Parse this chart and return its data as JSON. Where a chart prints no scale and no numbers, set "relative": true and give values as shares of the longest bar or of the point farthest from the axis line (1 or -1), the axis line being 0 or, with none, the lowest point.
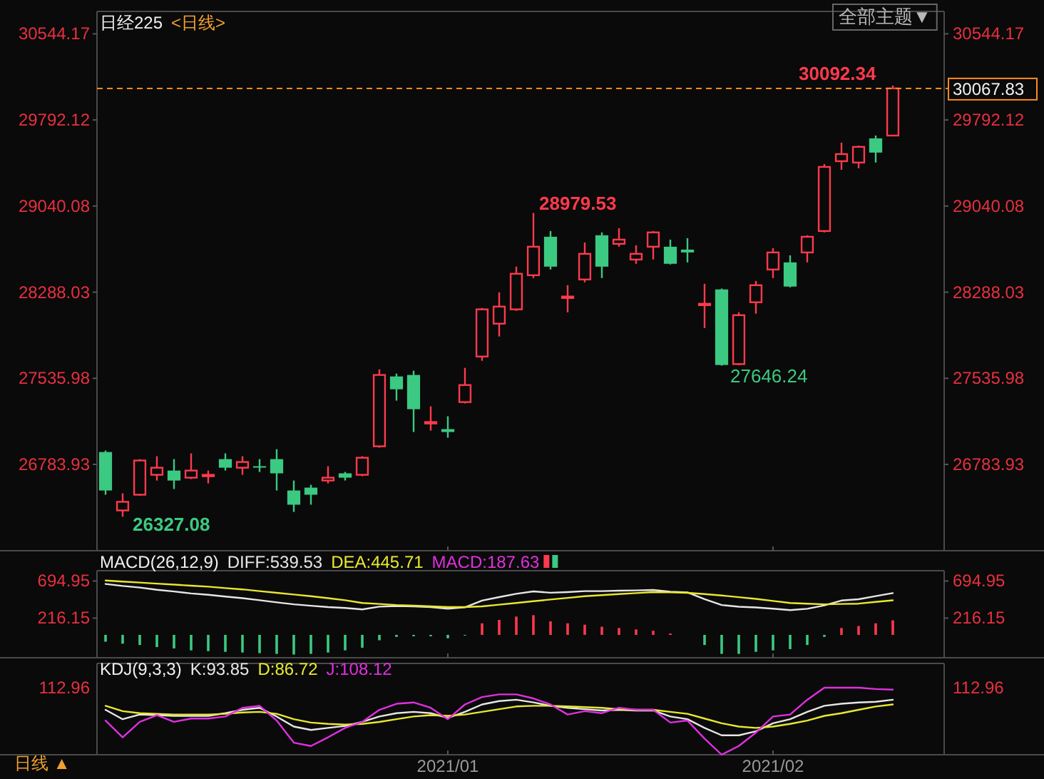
{
  "chart_data": [
    {
      "type": "candlestick",
      "title": "日经225",
      "subtitle": "<日线>",
      "categories": [
        null,
        null,
        null,
        null,
        null,
        null,
        null,
        null,
        null,
        null,
        null,
        null,
        null,
        null,
        null,
        null,
        null,
        null,
        null,
        null,
        "2021/01",
        null,
        null,
        null,
        null,
        null,
        null,
        null,
        null,
        null,
        null,
        null,
        null,
        null,
        null,
        null,
        null,
        null,
        null,
        "2021/02",
        null,
        null,
        null,
        null,
        null,
        null,
        null
      ],
      "ohlc": [
        [
          26892,
          26905,
          26519,
          26556
        ],
        [
          26382,
          26531,
          26327.08,
          26457
        ],
        [
          26519,
          26830,
          26510,
          26818
        ],
        [
          26693,
          26855,
          26643,
          26755
        ],
        [
          26730,
          26830,
          26569,
          26643
        ],
        [
          26668,
          26880,
          26656,
          26730
        ],
        [
          26681,
          26730,
          26618,
          26693
        ],
        [
          26830,
          26880,
          26730,
          26755
        ],
        [
          26755,
          26855,
          26693,
          26805
        ],
        [
          26768,
          26830,
          26718,
          26762
        ],
        [
          26830,
          26917,
          26556,
          26706
        ],
        [
          26556,
          26643,
          26369,
          26432
        ],
        [
          26581,
          26606,
          26432,
          26519
        ],
        [
          26643,
          26768,
          26618,
          26668
        ],
        [
          26706,
          26718,
          26643,
          26668
        ],
        [
          26693,
          26855,
          26681,
          26842
        ],
        [
          26942,
          27614,
          26930,
          27565
        ],
        [
          27552,
          27577,
          27341,
          27440
        ],
        [
          27565,
          27602,
          27067,
          27266
        ],
        [
          27141,
          27291,
          27079,
          27154
        ],
        [
          27092,
          27204,
          27017,
          27067
        ],
        [
          27328,
          27627,
          27316,
          27477
        ],
        [
          27726,
          28150,
          27689,
          28138
        ],
        [
          28013,
          28287,
          27901,
          28162
        ],
        [
          28138,
          28511,
          28125,
          28449
        ],
        [
          28436,
          28979.53,
          28411,
          28685
        ],
        [
          28772,
          28822,
          28486,
          28511
        ],
        [
          28237,
          28349,
          28112,
          28250
        ],
        [
          28399,
          28722,
          28374,
          28623
        ],
        [
          28785,
          28810,
          28411,
          28511
        ],
        [
          28710,
          28847,
          28685,
          28747
        ],
        [
          28573,
          28698,
          28536,
          28623
        ],
        [
          28685,
          28822,
          28573,
          28810
        ],
        [
          28685,
          28747,
          28530,
          28536
        ],
        [
          28660,
          28760,
          28548,
          28635
        ],
        [
          28175,
          28361,
          27975,
          28187
        ],
        [
          28312,
          28320,
          27646.24,
          27652
        ],
        [
          27660,
          28112,
          27650,
          28087
        ],
        [
          28200,
          28386,
          28100,
          28349
        ],
        [
          28486,
          28673,
          28411,
          28635
        ],
        [
          28548,
          28610,
          28330,
          28337
        ],
        [
          28635,
          28785,
          28548,
          28772
        ],
        [
          28822,
          29407,
          28810,
          29382
        ],
        [
          29432,
          29594,
          29357,
          29494
        ],
        [
          29420,
          29569,
          29370,
          29557
        ],
        [
          29631,
          29656,
          29420,
          29507
        ],
        [
          29656,
          30092.34,
          29650,
          30067.83
        ]
      ],
      "colors": [
        "#3cc982",
        "#ff3a4c",
        "#ff3a4c",
        "#ff3a4c",
        "#3cc982",
        "#ff3a4c",
        "#ff3a4c",
        "#3cc982",
        "#ff3a4c",
        "#3cc982",
        "#3cc982",
        "#3cc982",
        "#3cc982",
        "#ff3a4c",
        "#3cc982",
        "#ff3a4c",
        "#ff3a4c",
        "#3cc982",
        "#3cc982",
        "#ff3a4c",
        "#3cc982",
        "#ff3a4c",
        "#ff3a4c",
        "#ff3a4c",
        "#ff3a4c",
        "#ff3a4c",
        "#3cc982",
        "#ff3a4c",
        "#ff3a4c",
        "#3cc982",
        "#ff3a4c",
        "#ff3a4c",
        "#ff3a4c",
        "#3cc982",
        "#3cc982",
        "#ff3a4c",
        "#3cc982",
        "#ff3a4c",
        "#ff3a4c",
        "#ff3a4c",
        "#3cc982",
        "#ff3a4c",
        "#ff3a4c",
        "#ff3a4c",
        "#ff3a4c",
        "#3cc982",
        "#ff3a4c"
      ],
      "ylim": [
        26030,
        30740
      ],
      "yticks": [
        26783.93,
        27535.98,
        28288.03,
        29040.08,
        29792.12,
        30544.17
      ],
      "y2lim": [
        26030,
        30740
      ],
      "y2ticks": [
        26783.93,
        27535.98,
        28288.03,
        29040.08,
        29792.12,
        30544.17
      ],
      "tick_labels": "y",
      "ref_lines": [
        {
          "axis": "y2",
          "value": 30067.83,
          "label": "30067.83",
          "color": "#ff8c1a",
          "line_style": "dashed"
        }
      ],
      "annotations": [
        "全部主题▼",
        "26327.08",
        "28979.53",
        "27646.24",
        "30092.34"
      ]
    },
    {
      "type": "line",
      "title": "MACD(26,12,9)",
      "categories": [
        null,
        null,
        null,
        null,
        null,
        null,
        null,
        null,
        null,
        null,
        null,
        null,
        null,
        null,
        null,
        null,
        null,
        null,
        null,
        null,
        "2021/01",
        null,
        null,
        null,
        null,
        null,
        null,
        null,
        null,
        null,
        null,
        null,
        null,
        null,
        null,
        null,
        null,
        null,
        null,
        "2021/02",
        null,
        null,
        null,
        null,
        null,
        null,
        null
      ],
      "ylim": [
        -295,
        828
      ],
      "yticks": [
        216.15,
        694.95
      ],
      "y2lim": [
        -295,
        828
      ],
      "y2ticks": [
        216.15,
        694.95
      ],
      "tick_labels": "y",
      "series": [
        {
          "name": "DIFF:539.53",
          "color": "#e6e6e6",
          "values": [
            657,
            631,
            610,
            582,
            560,
            535,
            517,
            494,
            473,
            447,
            420,
            394,
            376,
            359,
            347,
            329,
            364,
            372,
            368,
            359,
            337,
            356,
            443,
            487,
            530,
            561,
            544,
            552,
            565,
            565,
            570,
            574,
            579,
            557,
            548,
            460,
            385,
            363,
            354,
            338,
            320,
            337,
            381,
            443,
            460,
            500,
            539.53
          ]
        },
        {
          "name": "DEA:445.71",
          "color": "#e8e830",
          "values": [
            701,
            688,
            675,
            661,
            648,
            635,
            622,
            604,
            587,
            565,
            543,
            521,
            499,
            473,
            447,
            412,
            399,
            385,
            377,
            368,
            359,
            359,
            368,
            390,
            412,
            434,
            456,
            477,
            499,
            512,
            526,
            539,
            552,
            548,
            543,
            526,
            508,
            486,
            464,
            438,
            412,
            403,
            394,
            399,
            403,
            425,
            445.71
          ]
        },
        {
          "name": "MACD:187.63",
          "type": "bar",
          "color": "#e030e0",
          "colors": [
            "#3cc982",
            "#3cc982",
            "#3cc982",
            "#3cc982",
            "#3cc982",
            "#3cc982",
            "#3cc982",
            "#3cc982",
            "#3cc982",
            "#3cc982",
            "#3cc982",
            "#3cc982",
            "#3cc982",
            "#3cc982",
            "#3cc982",
            "#3cc982",
            "#3cc982",
            "#3cc982",
            "#3cc982",
            "#3cc982",
            "#3cc982",
            "#3cc982",
            "#ff3a4c",
            "#ff3a4c",
            "#ff3a4c",
            "#ff3a4c",
            "#ff3a4c",
            "#ff3a4c",
            "#ff3a4c",
            "#ff3a4c",
            "#ff3a4c",
            "#ff3a4c",
            "#ff3a4c",
            "#ff3a4c",
            null,
            "#3cc982",
            "#3cc982",
            "#3cc982",
            "#3cc982",
            "#3cc982",
            "#3cc982",
            "#3cc982",
            "#3cc982",
            "#ff3a4c",
            "#ff3a4c",
            "#ff3a4c",
            "#ff3a4c"
          ],
          "values": [
            -88,
            -114,
            -131,
            -158,
            -175,
            -200,
            -210,
            -219,
            -228,
            -236,
            -245,
            -254,
            -245,
            -228,
            -200,
            -166,
            -70,
            -26,
            -18,
            -18,
            -44,
            -5,
            149,
            193,
            236,
            254,
            175,
            149,
            131,
            105,
            88,
            70,
            53,
            18,
            null,
            -131,
            -245,
            -245,
            -219,
            -200,
            -184,
            -131,
            -26,
            88,
            114,
            149,
            187.63
          ]
        }
      ]
    },
    {
      "type": "line",
      "title": "KDJ(9,3,3)",
      "relative": true,
      "categories": [
        null,
        null,
        null,
        null,
        null,
        null,
        null,
        null,
        null,
        null,
        null,
        null,
        null,
        null,
        null,
        null,
        null,
        null,
        null,
        null,
        "2021/01",
        null,
        null,
        null,
        null,
        null,
        null,
        null,
        null,
        null,
        null,
        null,
        null,
        null,
        null,
        null,
        null,
        null,
        null,
        "2021/02",
        null,
        null,
        null,
        null,
        null,
        null,
        null
      ],
      "tick_labels": "x",
      "series": [
        {
          "name": "K:93.85",
          "color": "#e6e6e6",
          "values": [
            0.67,
            0.53,
            0.6,
            0.59,
            0.58,
            0.58,
            0.58,
            0.62,
            0.67,
            0.7,
            0.57,
            0.42,
            0.37,
            0.4,
            0.43,
            0.49,
            0.57,
            0.62,
            0.64,
            0.62,
            0.55,
            0.64,
            0.75,
            0.8,
            0.82,
            0.78,
            0.73,
            0.7,
            0.68,
            0.66,
            0.67,
            0.66,
            0.66,
            0.57,
            0.53,
            0.4,
            0.29,
            0.29,
            0.35,
            0.47,
            0.53,
            0.64,
            0.73,
            0.76,
            0.78,
            0.79,
            0.82
          ]
        },
        {
          "name": "D:86.72",
          "color": "#e8e830",
          "values": [
            0.73,
            0.65,
            0.62,
            0.61,
            0.6,
            0.6,
            0.6,
            0.61,
            0.63,
            0.64,
            0.61,
            0.53,
            0.48,
            0.46,
            0.45,
            0.46,
            0.49,
            0.53,
            0.57,
            0.59,
            0.58,
            0.6,
            0.64,
            0.68,
            0.72,
            0.73,
            0.73,
            0.72,
            0.71,
            0.7,
            0.68,
            0.67,
            0.67,
            0.64,
            0.61,
            0.54,
            0.47,
            0.42,
            0.4,
            0.42,
            0.46,
            0.51,
            0.58,
            0.62,
            0.67,
            0.72,
            0.75
          ]
        },
        {
          "name": "J:108.12",
          "color": "#e030e0",
          "values": [
            0.51,
            0.26,
            0.49,
            0.59,
            0.49,
            0.54,
            0.54,
            0.57,
            0.7,
            0.73,
            0.51,
            0.18,
            0.13,
            0.26,
            0.4,
            0.49,
            0.67,
            0.76,
            0.78,
            0.7,
            0.53,
            0.75,
            0.86,
            0.9,
            0.9,
            0.84,
            0.75,
            0.6,
            0.65,
            0.62,
            0.7,
            0.67,
            0.67,
            0.48,
            0.51,
            0.24,
            0,
            0.13,
            0.33,
            0.57,
            0.6,
            0.82,
            1,
            1,
            1,
            0.98,
            0.97
          ]
        }
      ],
      "annotations": [
        "112.96",
        "日线 ▲"
      ]
    }
  ]
}
